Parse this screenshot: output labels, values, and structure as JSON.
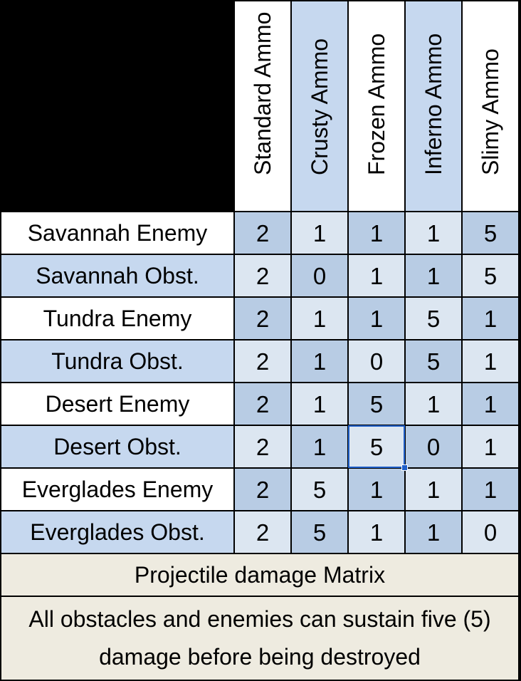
{
  "columns": [
    "Standard Ammo",
    "Crusty Ammo",
    "Frozen Ammo",
    "Inferno Ammo",
    "Slimy Ammo"
  ],
  "rows": [
    {
      "label": "Savannah Enemy",
      "values": [
        "2",
        "1",
        "1",
        "1",
        "5"
      ]
    },
    {
      "label": "Savannah Obst.",
      "values": [
        "2",
        "0",
        "1",
        "1",
        "5"
      ]
    },
    {
      "label": "Tundra Enemy",
      "values": [
        "2",
        "1",
        "1",
        "5",
        "1"
      ]
    },
    {
      "label": "Tundra Obst.",
      "values": [
        "2",
        "1",
        "0",
        "5",
        "1"
      ]
    },
    {
      "label": "Desert Enemy",
      "values": [
        "2",
        "1",
        "5",
        "1",
        "1"
      ]
    },
    {
      "label": "Desert Obst.",
      "values": [
        "2",
        "1",
        "5",
        "0",
        "1"
      ]
    },
    {
      "label": "Everglades Enemy",
      "values": [
        "2",
        "5",
        "1",
        "1",
        "1"
      ]
    },
    {
      "label": "Everglades Obst.",
      "values": [
        "2",
        "5",
        "1",
        "1",
        "0"
      ]
    }
  ],
  "footer": {
    "title": "Projectile damage Matrix",
    "note": "All obstacles and enemies can sustain five (5) damage before being destroyed"
  },
  "selected_cell": {
    "row": 5,
    "col": 2
  },
  "colors": {
    "header_light": "#ffffff",
    "header_blue": "#c6d8ef",
    "row_white": "#ffffff",
    "row_blue": "#c6d8ef",
    "cell_light": "#dce6f1",
    "cell_dark": "#b8cce4",
    "footer_bg": "#eeebe0",
    "selection": "#1f5fc9"
  }
}
